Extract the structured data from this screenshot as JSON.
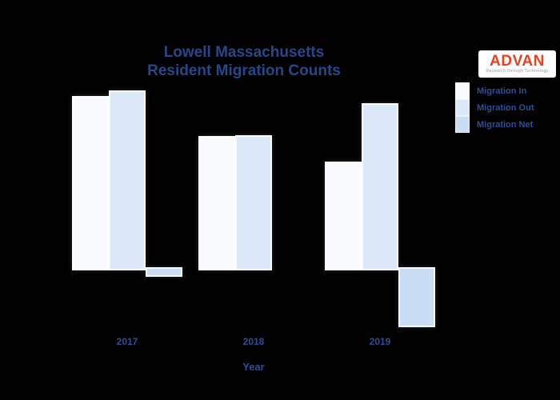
{
  "background": "#000000",
  "title": {
    "line1": "Lowell Massachusetts",
    "line2": "Resident Migration Counts"
  },
  "logo": {
    "name": "ADVAN",
    "tagline": "Research through Technology",
    "brand_color": "#e8411f",
    "background": "#ffffff"
  },
  "xaxis": {
    "label": "Year"
  },
  "text_color": "#2c4f97",
  "chart_data": {
    "type": "bar",
    "title": "Lowell Massachusetts Resident Migration Counts",
    "xlabel": "Year",
    "ylabel": "",
    "units": "relative bar height (no y-axis or value labels shown in image)",
    "categories": [
      "2017",
      "2018",
      "2019"
    ],
    "series": [
      {
        "name": "Migration In",
        "color": "#f8fafd",
        "values": [
          214,
          164,
          132
        ]
      },
      {
        "name": "Migration Out",
        "color": "#dce8f8",
        "values": [
          221,
          165,
          205
        ]
      },
      {
        "name": "Migration Net",
        "color": "#c9ddf4",
        "values": [
          -8,
          0,
          -71
        ]
      }
    ],
    "ylim": [
      -80,
      230
    ],
    "grid": false,
    "axes_visible": false,
    "legend_position": "top-right",
    "baseline": 0
  }
}
